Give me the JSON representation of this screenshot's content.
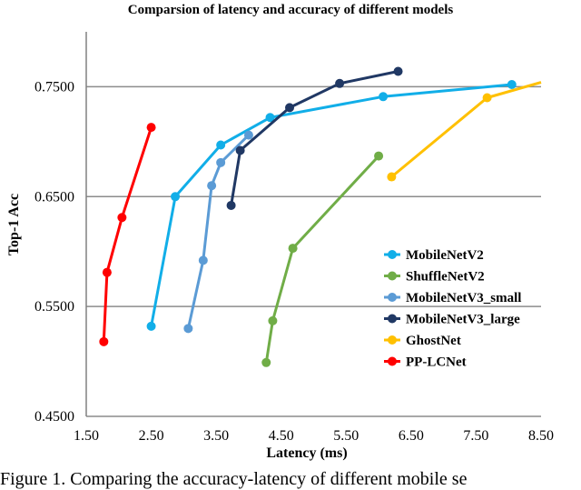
{
  "chart_data": {
    "type": "line",
    "title": "Comparsion of latency and accuracy of different models",
    "xlabel": "Latency (ms)",
    "ylabel": "Top-1 Acc",
    "xlim": [
      1.5,
      8.5
    ],
    "ylim": [
      0.45,
      0.8
    ],
    "xticks": [
      "1.50",
      "2.50",
      "3.50",
      "4.50",
      "5.50",
      "6.50",
      "7.50",
      "8.50"
    ],
    "yticks": [
      "0.4500",
      "0.5500",
      "0.6500",
      "0.7500"
    ],
    "grid": "horizontal",
    "legend_position": "right",
    "series": [
      {
        "name": "MobileNetV2",
        "color": "#11aee8",
        "points": [
          [
            2.5,
            0.532
          ],
          [
            2.87,
            0.65
          ],
          [
            3.57,
            0.697
          ],
          [
            4.33,
            0.722
          ],
          [
            6.07,
            0.741
          ],
          [
            8.05,
            0.752
          ]
        ]
      },
      {
        "name": "ShuffleNetV2",
        "color": "#70ad47",
        "points": [
          [
            4.27,
            0.499
          ],
          [
            4.37,
            0.537
          ],
          [
            4.68,
            0.603
          ],
          [
            6.0,
            0.687
          ]
        ]
      },
      {
        "name": "MobileNetV3_small",
        "color": "#5b9bd5",
        "points": [
          [
            3.07,
            0.53
          ],
          [
            3.3,
            0.592
          ],
          [
            3.43,
            0.66
          ],
          [
            3.57,
            0.681
          ],
          [
            4.0,
            0.706
          ]
        ]
      },
      {
        "name": "MobileNetV3_large",
        "color": "#203864",
        "points": [
          [
            3.73,
            0.642
          ],
          [
            3.87,
            0.692
          ],
          [
            4.63,
            0.731
          ],
          [
            5.4,
            0.753
          ],
          [
            6.3,
            0.764
          ]
        ]
      },
      {
        "name": "GhostNet",
        "color": "#ffc000",
        "points": [
          [
            6.2,
            0.668
          ],
          [
            7.67,
            0.74
          ],
          [
            8.5,
            0.754
          ]
        ]
      },
      {
        "name": "PP-LCNet",
        "color": "#ff0000",
        "points": [
          [
            1.77,
            0.518
          ],
          [
            1.82,
            0.581
          ],
          [
            2.05,
            0.631
          ],
          [
            2.5,
            0.713
          ]
        ]
      }
    ]
  },
  "caption": "Figure 1. Comparing the accuracy-latency of different mobile se"
}
